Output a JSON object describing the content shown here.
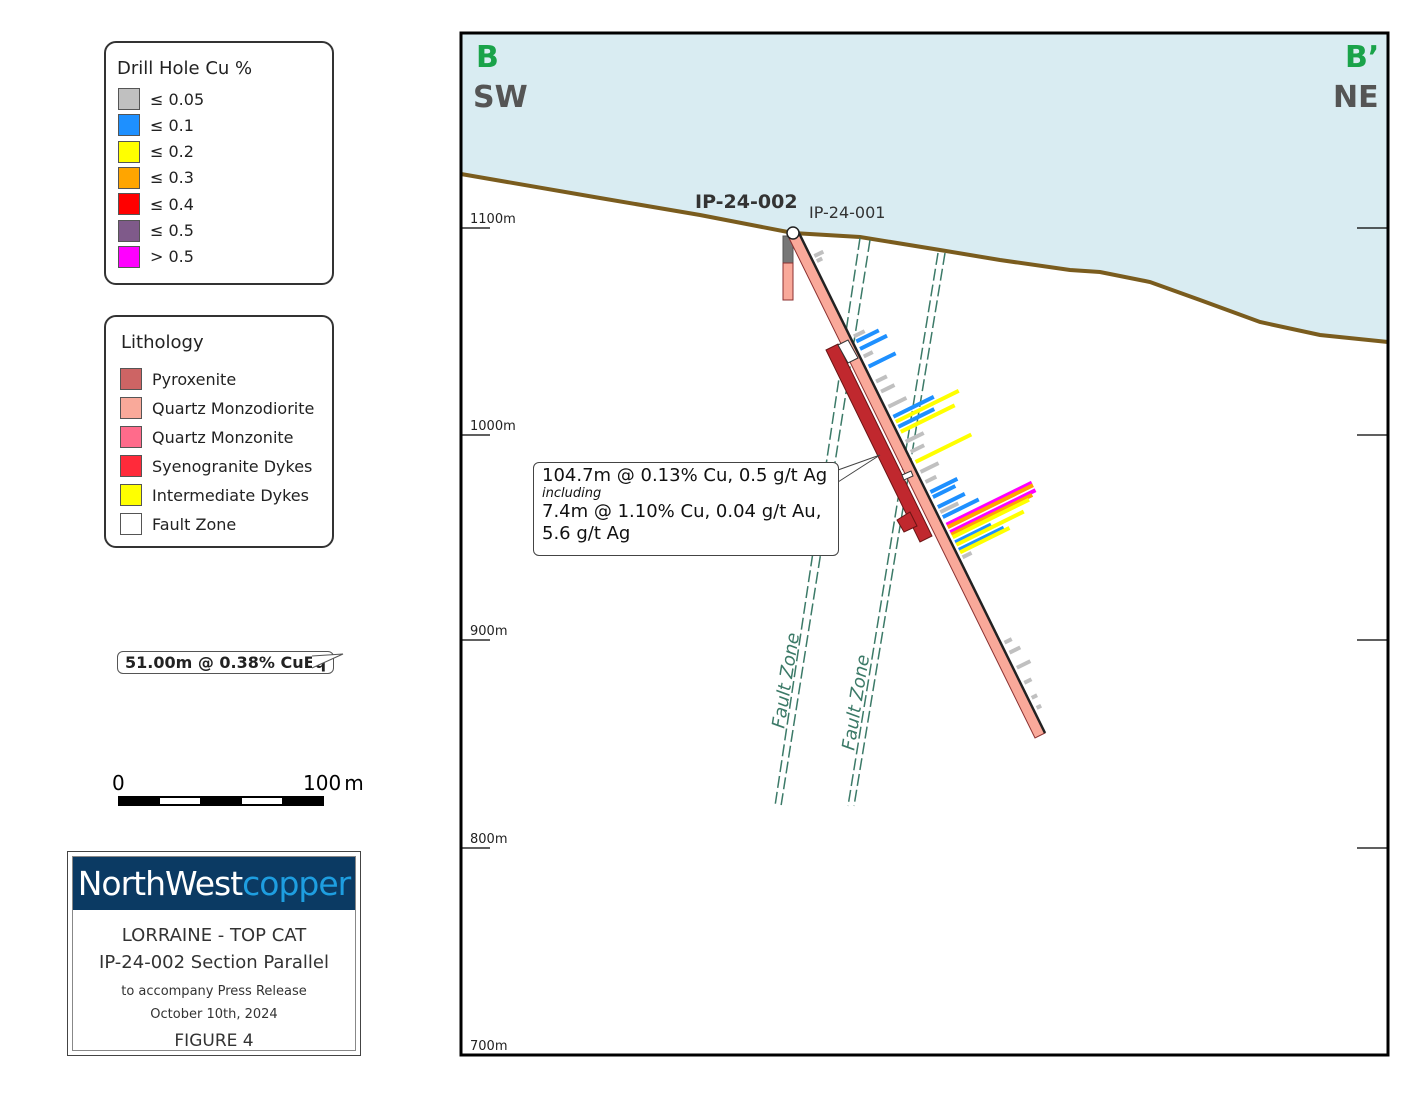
{
  "cu_legend": {
    "title": "Drill Hole Cu %",
    "items": [
      {
        "label": "≤ 0.05",
        "color": "#c0c0c0"
      },
      {
        "label": "≤ 0.1",
        "color": "#1e90ff"
      },
      {
        "label": "≤ 0.2",
        "color": "#ffff00"
      },
      {
        "label": "≤ 0.3",
        "color": "#ffa500"
      },
      {
        "label": "≤ 0.4",
        "color": "#ff0000"
      },
      {
        "label": "≤ 0.5",
        "color": "#7f5a8a"
      },
      {
        "label": "> 0.5",
        "color": "#ff00ff"
      }
    ]
  },
  "lithology_legend": {
    "title": "Lithology",
    "items": [
      {
        "label": "Pyroxenite",
        "color": "#cd6464"
      },
      {
        "label": "Quartz Monzodiorite",
        "color": "#f9a99a"
      },
      {
        "label": "Quartz Monzonite",
        "color": "#ff6b8b"
      },
      {
        "label": "Syenogranite Dykes",
        "color": "#ff2a3a"
      },
      {
        "label": "Intermediate Dykes",
        "color": "#ffff00"
      },
      {
        "label": "Fault Zone",
        "color": "#ffffff"
      }
    ]
  },
  "intercept_legend": {
    "label": "51.00m @ 0.38% CuEq"
  },
  "scale_bar": {
    "start": "0",
    "end": "100",
    "unit": "m"
  },
  "title_block": {
    "logo_a": "NorthWest",
    "logo_b": "copper",
    "project": "LORRAINE - TOP CAT",
    "section": "IP-24-002 Section Parallel",
    "note": "to accompany Press Release",
    "date": "October 10th, 2024",
    "figure": "FIGURE 4"
  },
  "section": {
    "left_label": "B",
    "left_dir": "SW",
    "right_label": "B’",
    "right_dir": "NE",
    "elevations": [
      "1100m",
      "1000m",
      "900m",
      "800m",
      "700m"
    ],
    "holes": [
      "IP-24-002",
      "IP-24-001"
    ],
    "fault_label": "Fault Zone",
    "callout": {
      "line1": "104.7m @ 0.13% Cu, 0.5 g/t Ag",
      "line2": "including",
      "line3": "7.4m @ 1.10% Cu, 0.04 g/t Au,",
      "line4": "5.6 g/t Ag"
    }
  },
  "colors": {
    "sky": "#d9ecf2",
    "topo": "#7a5c1e",
    "label_green": "#1aa34a",
    "fault": "#3c7a68",
    "logo_bg": "#0b3a63",
    "logo_accent": "#1e9ee0"
  }
}
